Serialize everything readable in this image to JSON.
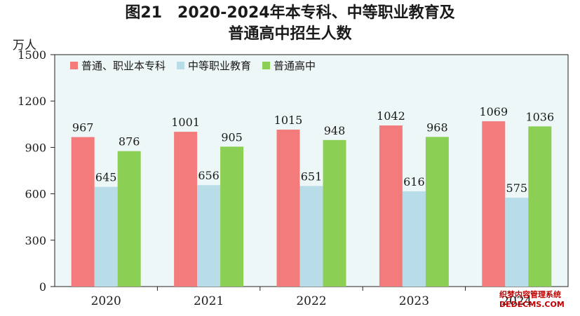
{
  "title_line1": "图21　2020-2024年本专科、中等职业教育及",
  "title_line2": "普通高中招生人数",
  "unit": "万人",
  "watermark_line1": "织梦内容管理系统",
  "watermark_line2": "DEDECMS.COM",
  "chart_data": {
    "type": "bar",
    "categories": [
      "2020",
      "2021",
      "2022",
      "2023",
      "2024"
    ],
    "series": [
      {
        "name": "普通、职业本专科",
        "color": "#f47b7b",
        "values": [
          967,
          1001,
          1015,
          1042,
          1069
        ]
      },
      {
        "name": "中等职业教育",
        "color": "#b9dde8",
        "values": [
          645,
          656,
          651,
          616,
          575
        ]
      },
      {
        "name": "普通高中",
        "color": "#8ccf55",
        "values": [
          876,
          905,
          948,
          968,
          1036
        ]
      }
    ],
    "yticks": [
      0,
      300,
      600,
      900,
      1200,
      1500
    ],
    "ylim": [
      0,
      1500
    ],
    "ylabel": "万人",
    "legend_position": "top-left",
    "plot_background": "#eef7f8"
  }
}
